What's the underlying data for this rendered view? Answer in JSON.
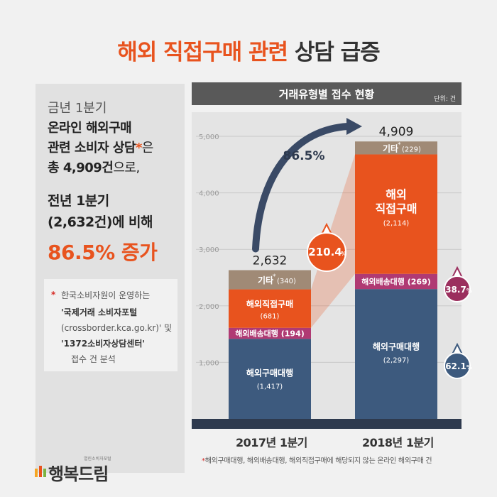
{
  "title": {
    "accent": "해외 직접구매 관련",
    "rest": "상담 급증"
  },
  "summary": {
    "line1": "금년 1분기",
    "line2": "온라인 해외구매",
    "line3a": "관련 소비자 상담",
    "line3star": "*",
    "line3b": "은",
    "line4a": "총 4,909건",
    "line4b": "으로,",
    "line5": "전년 1분기",
    "line6a": "(2,632건)",
    "line6b": "에 비해",
    "highlight": "86.5% 증가"
  },
  "note": {
    "star": "*",
    "line1": "한국소비자원이 운영하는",
    "line2": "'국제거래 소비자포털",
    "line3": "(crossborder.kca.go.kr)' 및",
    "line4": "'1372소비자상담센터'",
    "line5": "접수 건 분석"
  },
  "chart_header": {
    "title": "거래유형별 접수 현황",
    "unit": "단위: 건"
  },
  "chart_data": {
    "type": "bar",
    "stacked": true,
    "categories": [
      "2017년 1분기",
      "2018년 1분기"
    ],
    "series": [
      {
        "name": "해외구매대행",
        "values": [
          1417,
          2297
        ],
        "color": "#3d5a7e"
      },
      {
        "name": "해외배송대행",
        "values": [
          194,
          269
        ],
        "color": "#b03a73"
      },
      {
        "name": "해외직접구매",
        "values": [
          681,
          2114
        ],
        "color": "#e8531e"
      },
      {
        "name": "기타",
        "values": [
          340,
          229
        ],
        "color": "#a08a76"
      }
    ],
    "totals": [
      2632,
      4909
    ],
    "ylim": [
      0,
      5000
    ],
    "yticks": [
      1000,
      2000,
      3000,
      4000,
      5000
    ],
    "grid": true,
    "annotations": {
      "total_growth": "86.5%",
      "direct_growth": "210.4%",
      "shipping_growth": "38.7%",
      "agency_growth": "62.1%"
    }
  },
  "labels": {
    "y_ticks": [
      "5,000",
      "4,000",
      "3,000",
      "2,000",
      "1,000"
    ],
    "total_2017": "2,632",
    "total_2018": "4,909",
    "etc_2017": "기타",
    "etc_2017_val": "(340)",
    "direct_2017": "해외직접구매",
    "direct_2017_val": "(681)",
    "ship_2017": "해외배송대행 (194)",
    "agency_2017": "해외구매대행",
    "agency_2017_val": "(1,417)",
    "etc_2018": "기타",
    "etc_2018_val": "(229)",
    "direct_2018_a": "해외",
    "direct_2018_b": "직접구매",
    "direct_2018_val": "(2,114)",
    "ship_2018": "해외배송대행 (269)",
    "agency_2018": "해외구매대행",
    "agency_2018_val": "(2,297)",
    "growth_total": "86.5%",
    "growth_direct_num": "210.4",
    "growth_shipping_num": "38.7",
    "growth_agency_num": "62.1",
    "pct": "%",
    "star": "*"
  },
  "footnote": {
    "star": "*",
    "text": "해외구매대행, 해외배송대행, 해외직접구매에 해당되지 않는 온라인 해외구매 건"
  },
  "logo": {
    "name": "행복드림",
    "sub": "열린소비자포털"
  },
  "colors": {
    "accent": "#e8531e",
    "navy": "#3d5a7e",
    "magenta": "#b03a73",
    "taupe": "#a08a76",
    "dark": "#2e3a4e"
  }
}
